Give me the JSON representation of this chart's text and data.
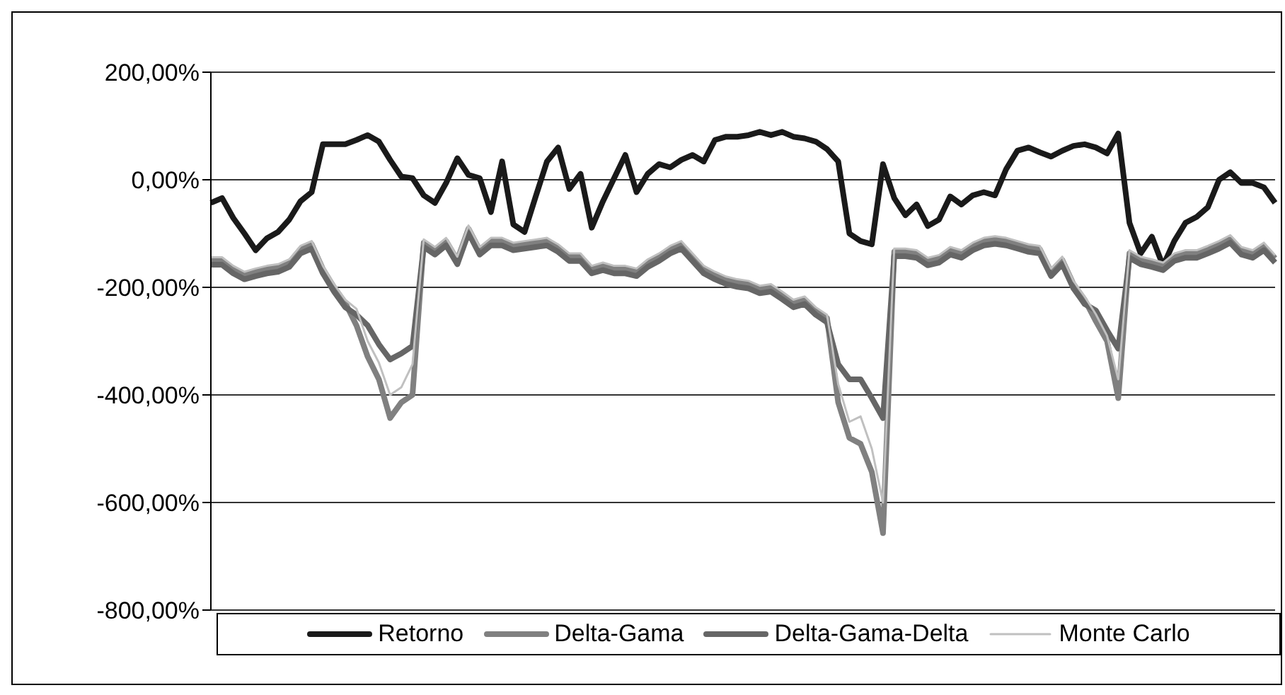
{
  "chart_data": {
    "type": "line",
    "categories": [
      null,
      null,
      null,
      null,
      null,
      null,
      null,
      null,
      null,
      null,
      null,
      null,
      null,
      null,
      null,
      null,
      null,
      null,
      null,
      null,
      null,
      null,
      null,
      null,
      null,
      null,
      null,
      null,
      null,
      null,
      null,
      null,
      null,
      null,
      null,
      null,
      null,
      null,
      null,
      null,
      null,
      null,
      null,
      null,
      null,
      null,
      null,
      null,
      null,
      null,
      null,
      null,
      null,
      null,
      null,
      null,
      null,
      null,
      null,
      null,
      null,
      null,
      null,
      null,
      null,
      null,
      null,
      null,
      null,
      null,
      null,
      null,
      null,
      null,
      null,
      null,
      null,
      null,
      null,
      null,
      null,
      null,
      null,
      null,
      null,
      null,
      null,
      null,
      null,
      null,
      null,
      null,
      null,
      null,
      null,
      null
    ],
    "series": [
      {
        "name": "Retorno",
        "color": "#1a1a1a",
        "values": [
          -43,
          -34,
          -71,
          -100,
          -131,
          -109,
          -97,
          -74,
          -40,
          -23,
          66,
          66,
          66,
          74,
          83,
          71,
          37,
          6,
          3,
          -29,
          -43,
          -6,
          40,
          9,
          3,
          -60,
          34,
          -83,
          -97,
          -31,
          34,
          60,
          -17,
          11,
          -89,
          -40,
          3,
          46,
          -23,
          11,
          29,
          23,
          37,
          46,
          34,
          74,
          80,
          80,
          83,
          89,
          83,
          89,
          80,
          77,
          71,
          57,
          34,
          -100,
          -114,
          -120,
          29,
          -34,
          -66,
          -46,
          -86,
          -74,
          -31,
          -46,
          -29,
          -23,
          -29,
          20,
          54,
          60,
          51,
          43,
          54,
          63,
          66,
          60,
          49,
          86,
          -80,
          -137,
          -106,
          -160,
          -114,
          -80,
          -69,
          -51,
          0,
          14,
          -6,
          -6,
          -14,
          -43
        ]
      },
      {
        "name": "Delta-Gama",
        "color": "#808080",
        "values": [
          -150,
          -150,
          -166,
          -177,
          -171,
          -166,
          -163,
          -154,
          -129,
          -120,
          -166,
          -200,
          -229,
          -271,
          -329,
          -371,
          -443,
          -414,
          -400,
          -117,
          -131,
          -114,
          -149,
          -91,
          -131,
          -114,
          -114,
          -123,
          -120,
          -117,
          -114,
          -126,
          -143,
          -143,
          -166,
          -160,
          -166,
          -166,
          -171,
          -154,
          -143,
          -129,
          -120,
          -143,
          -166,
          -177,
          -186,
          -191,
          -194,
          -203,
          -200,
          -214,
          -229,
          -223,
          -243,
          -257,
          -414,
          -480,
          -491,
          -543,
          -657,
          -134,
          -134,
          -137,
          -151,
          -146,
          -131,
          -137,
          -123,
          -114,
          -111,
          -114,
          -120,
          -126,
          -129,
          -171,
          -149,
          -194,
          -223,
          -263,
          -300,
          -406,
          -137,
          -149,
          -154,
          -160,
          -143,
          -137,
          -137,
          -129,
          -120,
          -109,
          -131,
          -137,
          -123,
          -146
        ]
      },
      {
        "name": "Delta-Gama-Delta",
        "color": "#666666",
        "values": [
          -158,
          -158,
          -174,
          -185,
          -179,
          -174,
          -171,
          -162,
          -137,
          -128,
          -174,
          -208,
          -237,
          -251,
          -271,
          -306,
          -334,
          -323,
          -309,
          -125,
          -139,
          -122,
          -157,
          -99,
          -139,
          -122,
          -122,
          -131,
          -128,
          -125,
          -122,
          -134,
          -151,
          -151,
          -174,
          -168,
          -174,
          -174,
          -179,
          -162,
          -151,
          -137,
          -128,
          -151,
          -174,
          -185,
          -194,
          -199,
          -202,
          -211,
          -208,
          -222,
          -237,
          -231,
          -251,
          -265,
          -343,
          -371,
          -371,
          -406,
          -443,
          -142,
          -142,
          -145,
          -159,
          -154,
          -139,
          -145,
          -131,
          -122,
          -119,
          -122,
          -128,
          -134,
          -137,
          -179,
          -157,
          -202,
          -231,
          -243,
          -280,
          -314,
          -145,
          -157,
          -162,
          -168,
          -151,
          -145,
          -145,
          -137,
          -128,
          -117,
          -139,
          -145,
          -131,
          -154
        ]
      },
      {
        "name": "Monte Carlo",
        "color": "#c0c0c0",
        "values": [
          -144,
          -144,
          -160,
          -171,
          -165,
          -160,
          -157,
          -148,
          -123,
          -114,
          -160,
          -194,
          -223,
          -240,
          -300,
          -340,
          -400,
          -386,
          -343,
          -111,
          -125,
          -108,
          -143,
          -85,
          -125,
          -108,
          -108,
          -117,
          -114,
          -111,
          -108,
          -120,
          -137,
          -137,
          -160,
          -154,
          -160,
          -160,
          -165,
          -148,
          -137,
          -123,
          -114,
          -137,
          -160,
          -171,
          -180,
          -185,
          -188,
          -197,
          -194,
          -208,
          -223,
          -217,
          -237,
          -251,
          -380,
          -450,
          -440,
          -500,
          -600,
          -128,
          -128,
          -131,
          -145,
          -140,
          -125,
          -131,
          -117,
          -108,
          -105,
          -108,
          -114,
          -120,
          -123,
          -165,
          -143,
          -188,
          -217,
          -250,
          -290,
          -371,
          -131,
          -143,
          -148,
          -154,
          -137,
          -131,
          -131,
          -123,
          -114,
          -103,
          -125,
          -131,
          -117,
          -140
        ]
      }
    ],
    "ylim": [
      -800,
      200
    ],
    "yticks": [
      {
        "value": -800,
        "label": "-800,00%"
      },
      {
        "value": -600,
        "label": "-600,00%"
      },
      {
        "value": -400,
        "label": "-400,00%"
      },
      {
        "value": -200,
        "label": "-200,00%"
      },
      {
        "value": 0,
        "label": "0,00%"
      },
      {
        "value": 200,
        "label": "200,00%"
      }
    ],
    "grid": "y",
    "legend": "bottom",
    "tick_labels": "y",
    "marker": "none",
    "line_style": "solid"
  }
}
